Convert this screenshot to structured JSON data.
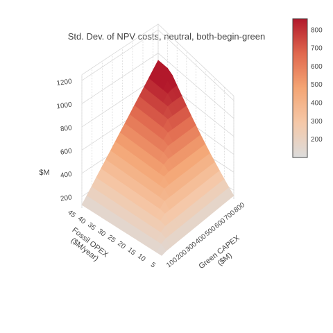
{
  "chart_data": {
    "type": "surface",
    "title": "Std. Dev. of NPV costs, neutral, both-begin-green",
    "x_axis": {
      "label": "Green CAPEX ($M)",
      "label_lines": [
        "Green CAPEX",
        "($M)"
      ],
      "ticks": [
        100,
        200,
        300,
        400,
        500,
        600,
        700,
        800
      ],
      "range": [
        100,
        850
      ]
    },
    "y_axis": {
      "label": "Fossil OPEX ($M/year)",
      "label_lines": [
        "Fossil OPEX",
        "($M/year)"
      ],
      "ticks": [
        5,
        10,
        15,
        20,
        25,
        30,
        35,
        40,
        45
      ],
      "range": [
        5,
        45
      ]
    },
    "z_axis": {
      "label": "$M",
      "ticks": [
        200,
        400,
        600,
        800,
        1000,
        1200
      ],
      "range": [
        100,
        1250
      ]
    },
    "colorbar": {
      "ticks": [
        200,
        300,
        400,
        500,
        600,
        700,
        800
      ],
      "range": [
        100,
        860
      ],
      "colorscale": [
        "#dcdcdc",
        "#f5c8a8",
        "#f4a574",
        "#e0684e",
        "#b2182b"
      ]
    },
    "surface_model": "approx: z ≈ 1.08·min(CAPEX, 22·OPEX) + 20",
    "grid_resolution": 16
  }
}
